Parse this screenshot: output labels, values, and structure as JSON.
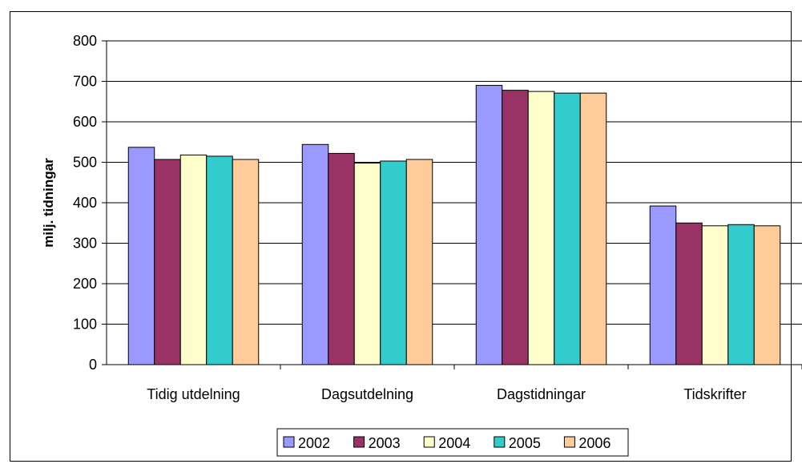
{
  "chart_data": {
    "type": "bar",
    "title": "",
    "xlabel": "",
    "ylabel": "milj. tidningar",
    "ylim": [
      0,
      800
    ],
    "yticks": [
      0,
      100,
      200,
      300,
      400,
      500,
      600,
      700,
      800
    ],
    "grid": true,
    "legend": "bottom",
    "categories": [
      "Tidig utdelning",
      "Dagsutdelning",
      "Dagstidningar",
      "Tidskrifter"
    ],
    "series": [
      {
        "name": "2002",
        "color": "#9999ff",
        "values": [
          537,
          544,
          690,
          392
        ]
      },
      {
        "name": "2003",
        "color": "#993366",
        "values": [
          507,
          522,
          678,
          350
        ]
      },
      {
        "name": "2004",
        "color": "#ffffcc",
        "values": [
          518,
          498,
          675,
          343
        ]
      },
      {
        "name": "2005",
        "color": "#33cccc",
        "values": [
          515,
          503,
          671,
          346
        ]
      },
      {
        "name": "2006",
        "color": "#ffcc99",
        "values": [
          507,
          507,
          671,
          343
        ]
      }
    ]
  }
}
